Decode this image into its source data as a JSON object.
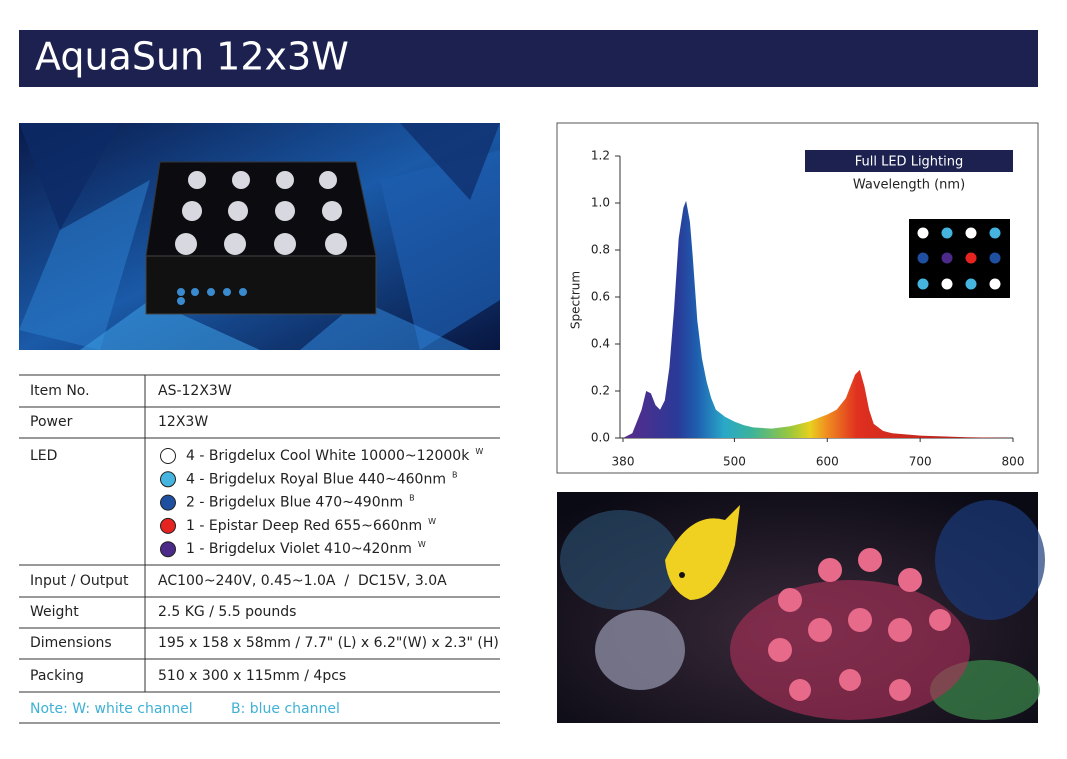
{
  "header": {
    "title": "AquaSun 12x3W"
  },
  "specs": {
    "rows": [
      {
        "label": "Item No.",
        "value": "AS-12X3W"
      },
      {
        "label": "Power",
        "value": "12X3W"
      },
      {
        "label": "LED",
        "leds": [
          {
            "text": "4 - Brigdelux Cool White 10000~12000k",
            "channel": "W",
            "color": "#ffffff"
          },
          {
            "text": "4 - Brigdelux Royal Blue 440~460nm",
            "channel": "B",
            "color": "#45b5e0"
          },
          {
            "text": "2 - Brigdelux Blue 470~490nm",
            "channel": "B",
            "color": "#1f4fa0"
          },
          {
            "text": "1 - Epistar Deep Red 655~660nm",
            "channel": "W",
            "color": "#e52421"
          },
          {
            "text": "1 - Brigdelux Violet 410~420nm",
            "channel": "W",
            "color": "#4b2a8a"
          }
        ]
      },
      {
        "label": "Input / Output",
        "value": "AC100~240V, 0.45~1.0A  /  DC15V, 3.0A"
      },
      {
        "label": "Weight",
        "value": "2.5 KG / 5.5 pounds"
      },
      {
        "label": "Dimensions",
        "value": "195 x 158 x 58mm / 7.7\" (L) x 6.2\"(W) x 2.3\" (H)"
      },
      {
        "label": "Packing",
        "value": "510 x 300 x 115mm / 4pcs"
      }
    ],
    "note": [
      "Note: W: white channel",
      "B: blue channel"
    ]
  },
  "chart_data": {
    "type": "area",
    "title": "Full LED Lighting",
    "subtitle": "Wavelength (nm)",
    "y_label": "Spectrum",
    "x": [
      380,
      390,
      400,
      405,
      410,
      415,
      420,
      425,
      430,
      435,
      440,
      445,
      448,
      452,
      455,
      460,
      465,
      470,
      475,
      480,
      490,
      500,
      510,
      520,
      540,
      560,
      580,
      600,
      610,
      620,
      625,
      630,
      635,
      640,
      645,
      650,
      660,
      670,
      700,
      750,
      800
    ],
    "values": [
      0,
      0.02,
      0.12,
      0.2,
      0.19,
      0.14,
      0.12,
      0.16,
      0.3,
      0.55,
      0.85,
      0.98,
      1.01,
      0.92,
      0.78,
      0.5,
      0.34,
      0.24,
      0.17,
      0.12,
      0.09,
      0.07,
      0.055,
      0.045,
      0.04,
      0.05,
      0.07,
      0.1,
      0.12,
      0.17,
      0.22,
      0.27,
      0.29,
      0.22,
      0.12,
      0.06,
      0.03,
      0.02,
      0.01,
      0.003,
      0
    ],
    "xlim": [
      380,
      800
    ],
    "ylim": [
      0,
      1.2
    ],
    "xticks": [
      380,
      500,
      600,
      700,
      800
    ],
    "yticks": [
      {
        "value": 0,
        "label": "0.0"
      },
      0.2,
      0.4,
      0.6,
      0.8,
      {
        "value": 1,
        "label": "1.0"
      },
      1.2
    ]
  }
}
